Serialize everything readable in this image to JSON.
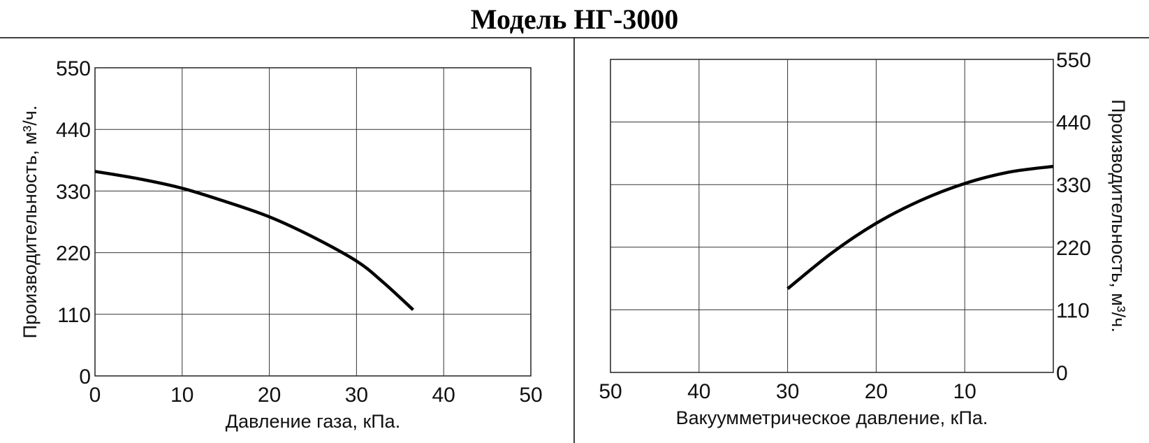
{
  "title": "Модель НГ-3000",
  "chart_data": [
    {
      "type": "line",
      "title": "",
      "xlabel": "Давление газа, кПа.",
      "ylabel": "Производительность, м³/ч.",
      "xlim": [
        0,
        50
      ],
      "ylim": [
        0,
        550
      ],
      "x_reversed": false,
      "x_ticks": [
        0,
        10,
        20,
        30,
        40,
        50
      ],
      "y_ticks": [
        0,
        110,
        220,
        330,
        440,
        550
      ],
      "yaxis_side": "left",
      "grid": true,
      "series": [
        {
          "x": [
            0,
            5,
            10,
            15,
            20,
            25,
            30,
            33,
            36.5
          ],
          "y": [
            365,
            352,
            335,
            311,
            284,
            248,
            205,
            168,
            118
          ]
        }
      ]
    },
    {
      "type": "line",
      "title": "",
      "xlabel": "Вакуумметрическое давление, кПа.",
      "ylabel": "Производительность, м³/ч.",
      "xlim": [
        50,
        0
      ],
      "ylim": [
        0,
        550
      ],
      "x_reversed": true,
      "x_ticks": [
        50,
        40,
        30,
        20,
        10
      ],
      "y_ticks": [
        0,
        110,
        220,
        330,
        440,
        550
      ],
      "yaxis_side": "right",
      "grid": true,
      "series": [
        {
          "x": [
            30,
            25,
            20,
            15,
            10,
            5,
            0
          ],
          "y": [
            147,
            210,
            262,
            302,
            332,
            352,
            362
          ]
        }
      ]
    }
  ]
}
